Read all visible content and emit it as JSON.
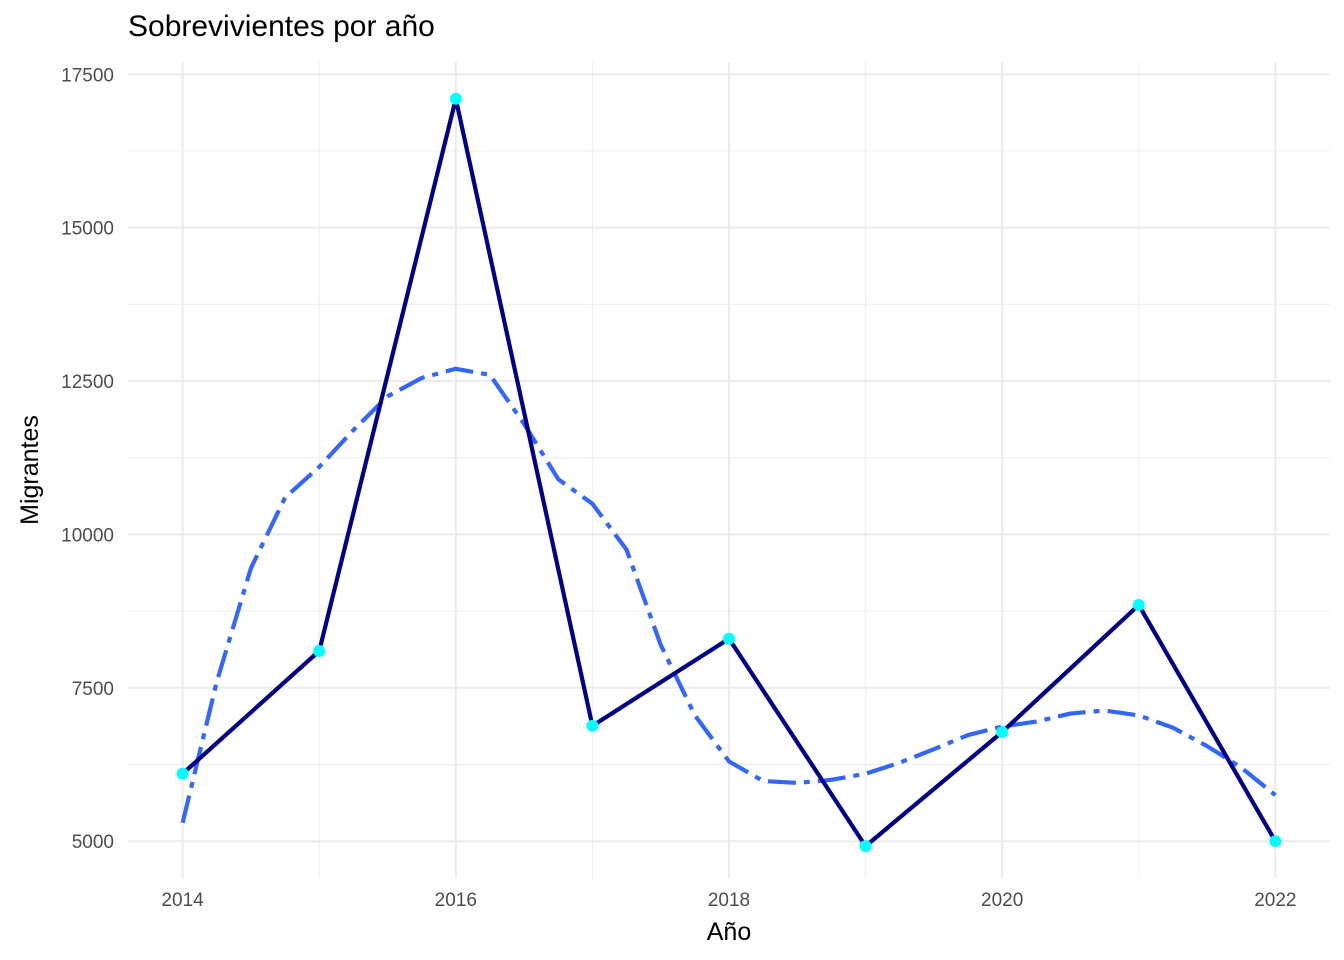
{
  "chart_data": {
    "type": "line",
    "title": "Sobrevivientes por año",
    "xlabel": "Año",
    "ylabel": "Migrantes",
    "x": [
      2014,
      2015,
      2016,
      2017,
      2018,
      2019,
      2020,
      2021,
      2022
    ],
    "series": [
      {
        "name": "",
        "values": [
          6100,
          8100,
          17100,
          6880,
          8300,
          4920,
          6780,
          8850,
          5000
        ],
        "line_color": "#00008B",
        "point_color": "#00FFFF"
      }
    ],
    "trend": {
      "style": "dashed smooth",
      "color": "#3366FF",
      "x": [
        2014,
        2014.25,
        2014.5,
        2014.75,
        2015,
        2015.25,
        2015.5,
        2015.75,
        2016,
        2016.25,
        2016.5,
        2016.75,
        2017,
        2017.25,
        2017.5,
        2017.75,
        2018,
        2018.25,
        2018.5,
        2018.75,
        2019,
        2019.25,
        2019.5,
        2019.75,
        2020,
        2020.25,
        2020.5,
        2020.75,
        2021,
        2021.25,
        2021.5,
        2021.75,
        2022
      ],
      "values": [
        5300,
        7600,
        9450,
        10600,
        11100,
        11700,
        12250,
        12550,
        12700,
        12600,
        11800,
        10900,
        10500,
        9750,
        8200,
        7050,
        6300,
        5980,
        5950,
        6000,
        6100,
        6280,
        6500,
        6730,
        6870,
        6950,
        7080,
        7130,
        7050,
        6850,
        6550,
        6200,
        5750
      ]
    },
    "x_ticks": [
      "2014",
      "2016",
      "2018",
      "2020",
      "2022"
    ],
    "y_ticks": [
      "5000",
      "7500",
      "10000",
      "12500",
      "15000",
      "17500"
    ],
    "xlim": [
      2013.6,
      2022.4
    ],
    "ylim": [
      4400,
      17700
    ],
    "grid": true,
    "legend": "none"
  }
}
